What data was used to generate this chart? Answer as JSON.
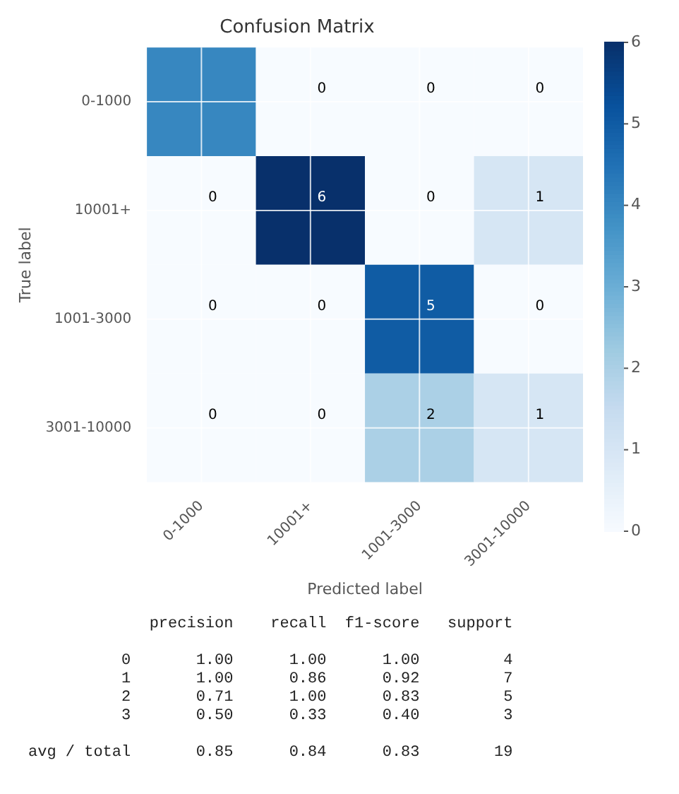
{
  "chart_data": {
    "type": "heatmap",
    "title": "Confusion Matrix",
    "xlabel": "Predicted label",
    "ylabel": "True label",
    "categories": [
      "0-1000",
      "10001+",
      "1001-3000",
      "3001-10000"
    ],
    "y_categories": [
      "0-1000",
      "10001+",
      "1001-3000",
      "3001-10000"
    ],
    "cells": [
      [
        4,
        0,
        0,
        0
      ],
      [
        0,
        6,
        0,
        1
      ],
      [
        0,
        0,
        5,
        0
      ],
      [
        0,
        0,
        2,
        1
      ]
    ],
    "cell_labels": [
      [
        null,
        "0",
        "0",
        "0"
      ],
      [
        "0",
        "6",
        "0",
        "1"
      ],
      [
        "0",
        "0",
        "5",
        "0"
      ],
      [
        "0",
        "0",
        "2",
        "1"
      ]
    ],
    "clim": [
      0,
      6
    ],
    "cticks": [
      0,
      1,
      2,
      3,
      4,
      5,
      6
    ],
    "grid": true,
    "annotations": [
      "             precision    recall  f1-score   support",
      "          0       1.00      1.00      1.00         4",
      "          1       1.00      0.86      0.92         7",
      "          2       0.71      1.00      0.83         5",
      "          3       0.50      0.33      0.40         3",
      "avg / total       0.85      0.84      0.83        19"
    ]
  }
}
